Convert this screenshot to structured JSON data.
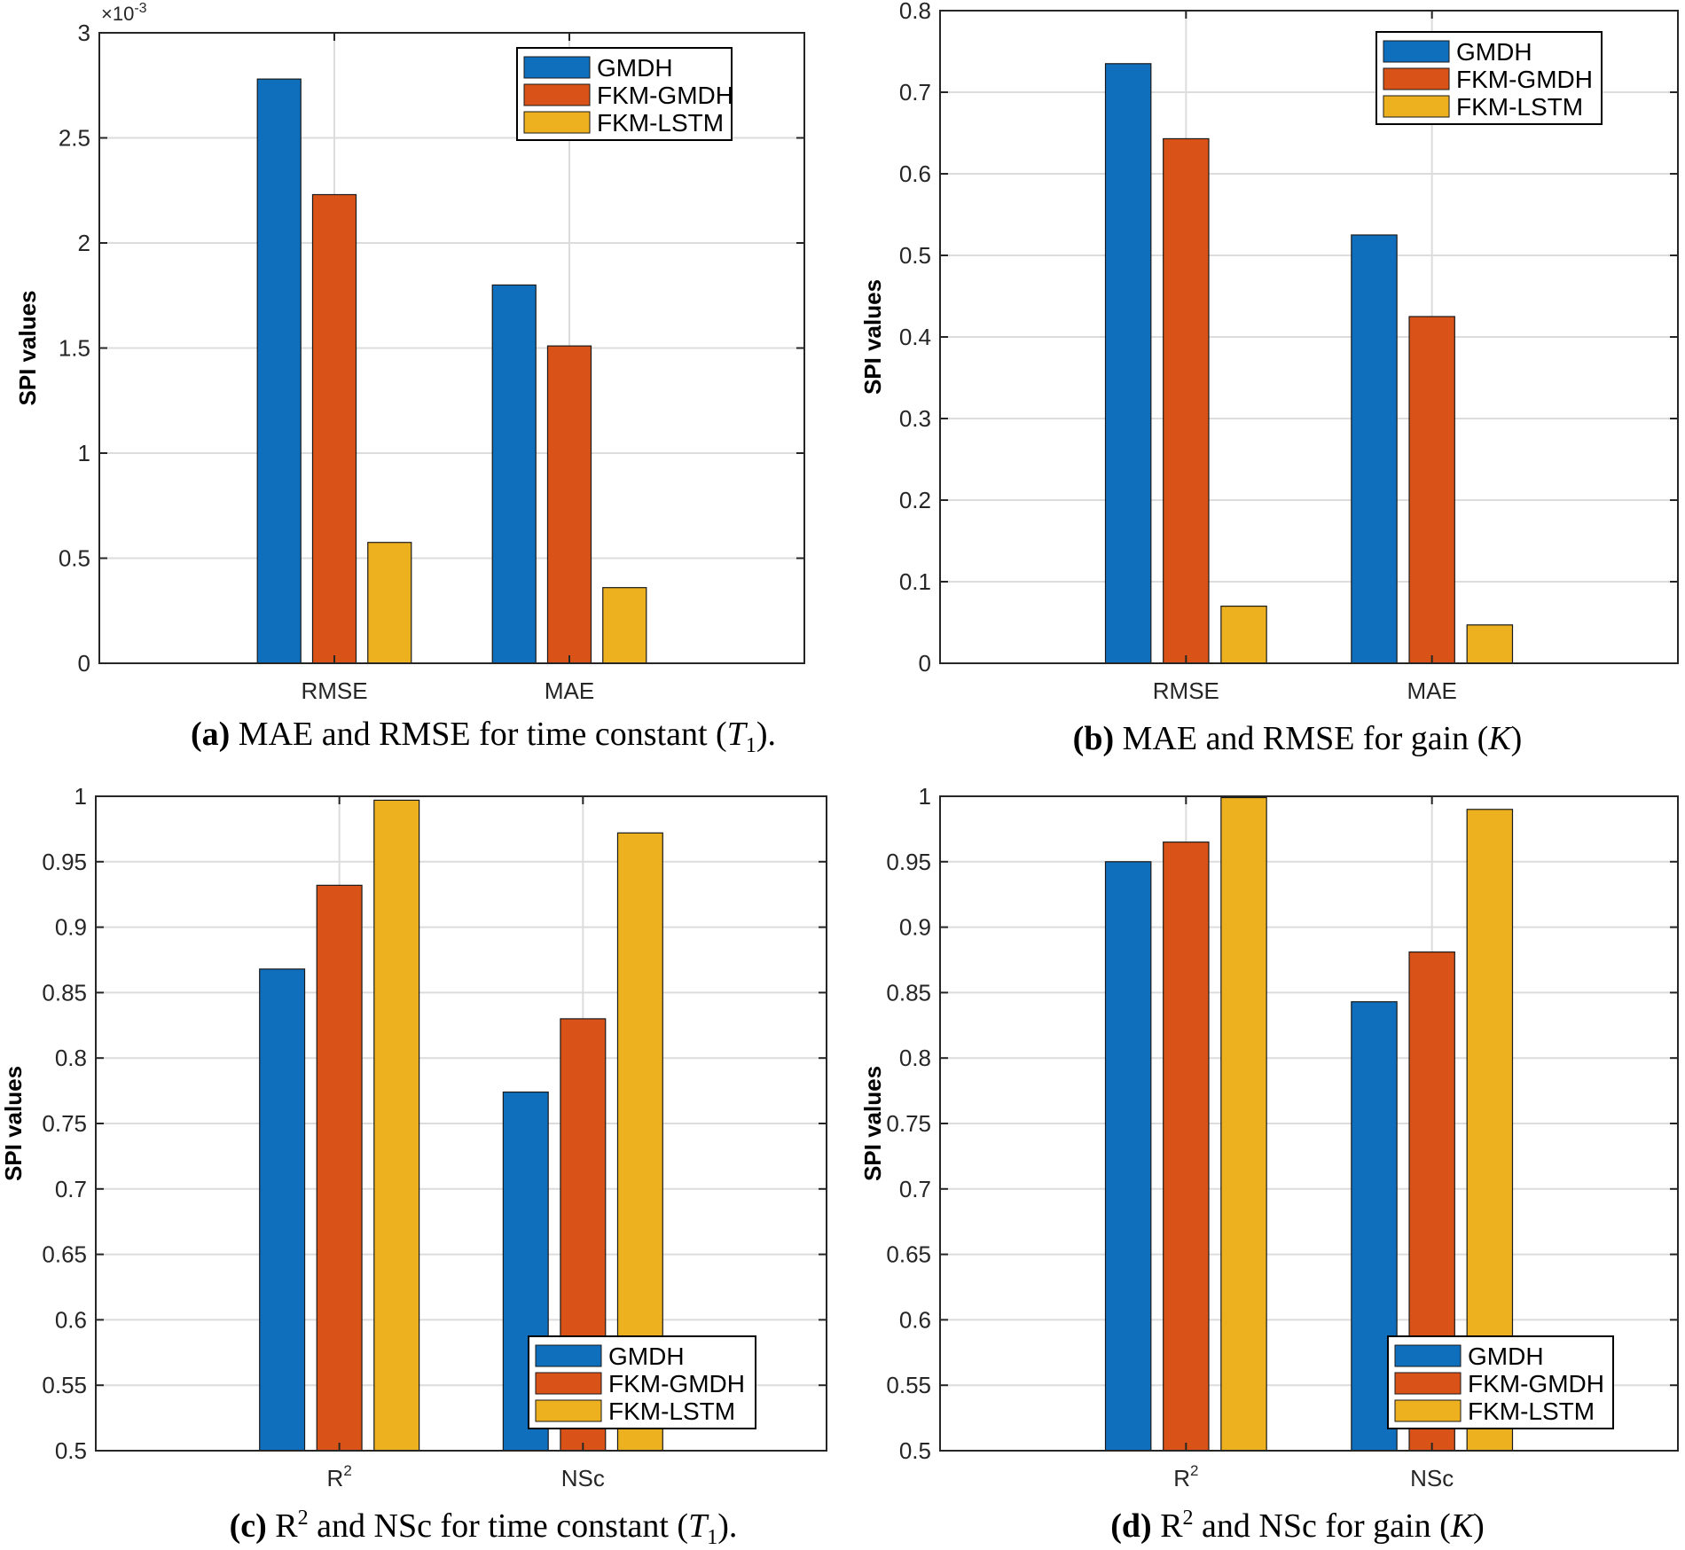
{
  "colors": {
    "gmdh": "#0f6fbd",
    "fkm_gmdh": "#d95319",
    "fkm_lstm": "#edb120",
    "grid": "#dcdcdc",
    "axis": "#262626"
  },
  "chart_data": [
    {
      "panel": "a",
      "type": "bar",
      "categories": [
        "RMSE",
        "MAE"
      ],
      "category_sup": [
        "",
        ""
      ],
      "series": [
        {
          "name": "GMDH",
          "values": [
            2.78,
            1.8
          ]
        },
        {
          "name": "FKM-GMDH",
          "values": [
            2.23,
            1.51
          ]
        },
        {
          "name": "FKM-LSTM",
          "values": [
            0.575,
            0.36
          ]
        }
      ],
      "ylim": [
        0,
        3
      ],
      "yticks": [
        "0",
        "0.5",
        "1",
        "1.5",
        "2",
        "2.5",
        "3"
      ],
      "y_exponent": "×10-3",
      "ylabel": "SPI values",
      "legend_position": "top-right",
      "caption": {
        "label": "(a)",
        "text": " MAE and RMSE for time constant (",
        "italic": "T",
        "sub": "1",
        "end": ")."
      }
    },
    {
      "panel": "b",
      "type": "bar",
      "categories": [
        "RMSE",
        "MAE"
      ],
      "category_sup": [
        "",
        ""
      ],
      "series": [
        {
          "name": "GMDH",
          "values": [
            0.735,
            0.525
          ]
        },
        {
          "name": "FKM-GMDH",
          "values": [
            0.643,
            0.425
          ]
        },
        {
          "name": "FKM-LSTM",
          "values": [
            0.07,
            0.047
          ]
        }
      ],
      "ylim": [
        0,
        0.8
      ],
      "yticks": [
        "0",
        "0.1",
        "0.2",
        "0.3",
        "0.4",
        "0.5",
        "0.6",
        "0.7",
        "0.8"
      ],
      "y_exponent": "",
      "ylabel": "SPI values",
      "legend_position": "top-right",
      "caption": {
        "label": "(b)",
        "text": " MAE and RMSE for gain (",
        "italic": "K",
        "sub": "",
        "end": ")"
      }
    },
    {
      "panel": "c",
      "type": "bar",
      "categories": [
        "R",
        "NSc"
      ],
      "category_sup": [
        "2",
        ""
      ],
      "series": [
        {
          "name": "GMDH",
          "values": [
            0.868,
            0.774
          ]
        },
        {
          "name": "FKM-GMDH",
          "values": [
            0.932,
            0.83
          ]
        },
        {
          "name": "FKM-LSTM",
          "values": [
            0.997,
            0.972
          ]
        }
      ],
      "ylim": [
        0.5,
        1
      ],
      "yticks": [
        "0.5",
        "0.55",
        "0.6",
        "0.65",
        "0.7",
        "0.75",
        "0.8",
        "0.85",
        "0.9",
        "0.95",
        "1"
      ],
      "y_exponent": "",
      "ylabel": "SPI values",
      "legend_position": "bottom-right",
      "caption": {
        "label": "(c)",
        "text": " R",
        "sup": "2",
        "text2": " and NSc for time constant (",
        "italic": "T",
        "sub": "1",
        "end": ")."
      }
    },
    {
      "panel": "d",
      "type": "bar",
      "categories": [
        "R",
        "NSc"
      ],
      "category_sup": [
        "2",
        ""
      ],
      "series": [
        {
          "name": "GMDH",
          "values": [
            0.95,
            0.843
          ]
        },
        {
          "name": "FKM-GMDH",
          "values": [
            0.965,
            0.881
          ]
        },
        {
          "name": "FKM-LSTM",
          "values": [
            0.999,
            0.99
          ]
        }
      ],
      "ylim": [
        0.5,
        1
      ],
      "yticks": [
        "0.5",
        "0.55",
        "0.6",
        "0.65",
        "0.7",
        "0.75",
        "0.8",
        "0.85",
        "0.9",
        "0.95",
        "1"
      ],
      "y_exponent": "",
      "ylabel": "SPI values",
      "legend_position": "bottom-right",
      "caption": {
        "label": "(d)",
        "text": " R",
        "sup": "2",
        "text2": " and NSc for gain (",
        "italic": "K",
        "sub": "",
        "end": ")"
      }
    }
  ]
}
